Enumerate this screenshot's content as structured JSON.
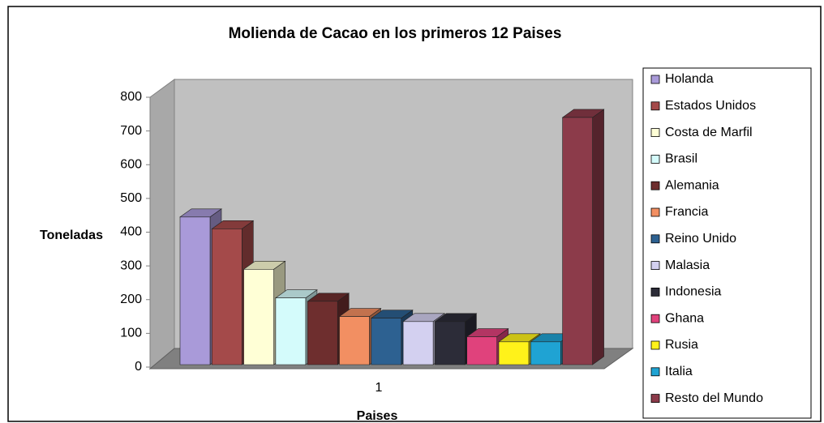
{
  "chart_data": {
    "type": "bar3d",
    "title": "Molienda de Cacao en los primeros 12 Paises",
    "x_label": "Paises",
    "y_label": "Toneladas",
    "categories": [
      "1"
    ],
    "ylim": [
      0,
      800
    ],
    "yticks": [
      0,
      100,
      200,
      300,
      400,
      500,
      600,
      700,
      800
    ],
    "legend": "right",
    "series": [
      {
        "name": "Holanda",
        "color": "#a99ad9",
        "values": [
          445
        ]
      },
      {
        "name": "Estados Unidos",
        "color": "#a44a4a",
        "values": [
          410
        ]
      },
      {
        "name": "Costa de Marfil",
        "color": "#ffffd6",
        "values": [
          290
        ]
      },
      {
        "name": "Brasil",
        "color": "#d4fbfb",
        "values": [
          205
        ]
      },
      {
        "name": "Alemania",
        "color": "#6e2e2e",
        "values": [
          195
        ]
      },
      {
        "name": "Francia",
        "color": "#f28f62",
        "values": [
          150
        ]
      },
      {
        "name": "Reino Unido",
        "color": "#2d6191",
        "values": [
          145
        ]
      },
      {
        "name": "Malasia",
        "color": "#d3d0f0",
        "values": [
          135
        ]
      },
      {
        "name": "Indonesia",
        "color": "#2c2c38",
        "values": [
          135
        ]
      },
      {
        "name": "Ghana",
        "color": "#e0427c",
        "values": [
          90
        ]
      },
      {
        "name": "Rusia",
        "color": "#fff21a",
        "values": [
          75
        ]
      },
      {
        "name": "Italia",
        "color": "#1fa3d3",
        "values": [
          75
        ]
      },
      {
        "name": "Resto del Mundo",
        "color": "#8c3b4a",
        "values": [
          740
        ]
      }
    ]
  }
}
